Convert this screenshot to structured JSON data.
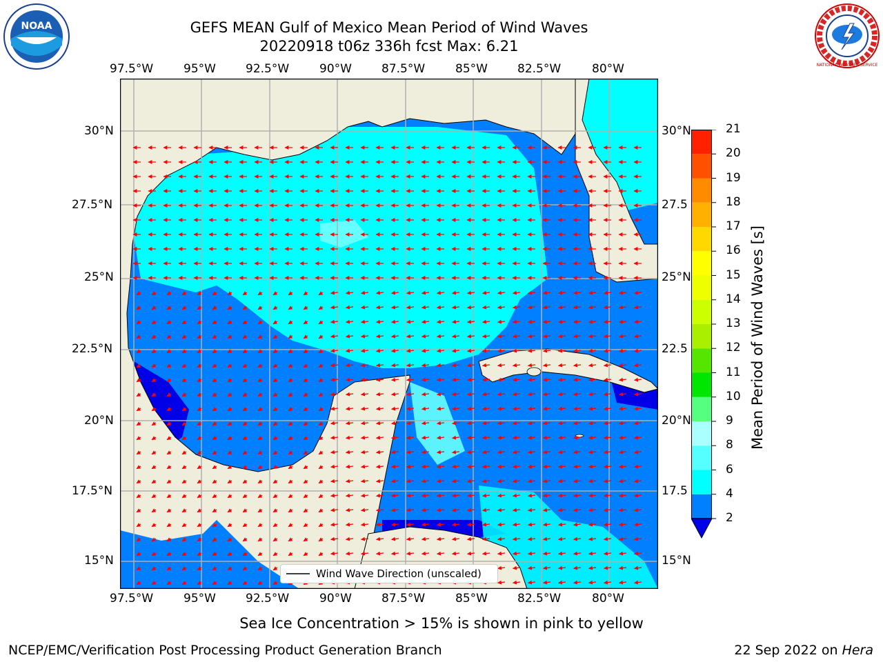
{
  "title": {
    "line1": "GEFS MEAN Gulf of Mexico Mean Period of Wind Waves",
    "line2": "20220918 t06z 336h fcst   Max: 6.21"
  },
  "map": {
    "lon_labels": [
      "97.5°W",
      "95°W",
      "92.5°W",
      "90°W",
      "87.5°W",
      "85°W",
      "82.5°W",
      "80°W"
    ],
    "lat_labels_left": [
      "30°N",
      "27.5°N",
      "25°N",
      "22.5°N",
      "20°N",
      "17.5°N",
      "15°N"
    ],
    "lat_labels_right": [
      "30°N",
      "27.5",
      "25°N",
      "22.5",
      "20°N",
      "17.5",
      "15°N"
    ],
    "lon_range": [
      -98,
      -78.2
    ],
    "lat_range": [
      14,
      31.8
    ],
    "colors": {
      "land": "#efeddb",
      "bin_2_4": "#0080ff",
      "bin_4_6": "#00ffff",
      "bin_6_8": "#66ffff",
      "below_2": "#0000e6",
      "arrows": "#ff0000",
      "grid": "#b0b0b0"
    },
    "legend_label": "Wind Wave Direction (unscaled)"
  },
  "colorbar": {
    "label": "Mean Period of Wind Waves [s]",
    "ticks": [
      "2",
      "4",
      "6",
      "8",
      "9",
      "10",
      "11",
      "12",
      "13",
      "14",
      "15",
      "16",
      "17",
      "18",
      "19",
      "20",
      "21"
    ],
    "colors": [
      "#0080ff",
      "#00ffff",
      "#55ffff",
      "#aaffff",
      "#55ff80",
      "#00e600",
      "#55e600",
      "#aaee00",
      "#ccff00",
      "#eeff00",
      "#ffff00",
      "#ffd800",
      "#ffb000",
      "#ff8c00",
      "#ff5000",
      "#ff2000"
    ]
  },
  "subtitle": "Sea Ice Concentration > 15% is shown in pink to yellow",
  "footer": {
    "left": "NCEP/EMC/Verification Post Processing Product Generation Branch",
    "right_date": "22 Sep 2022 on ",
    "right_host": "Hera"
  },
  "logos": {
    "left": "noaa-logo",
    "left_text": "NOAA",
    "right": "nws-logo",
    "right_text": "NATIONAL WEATHER SERVICE"
  }
}
